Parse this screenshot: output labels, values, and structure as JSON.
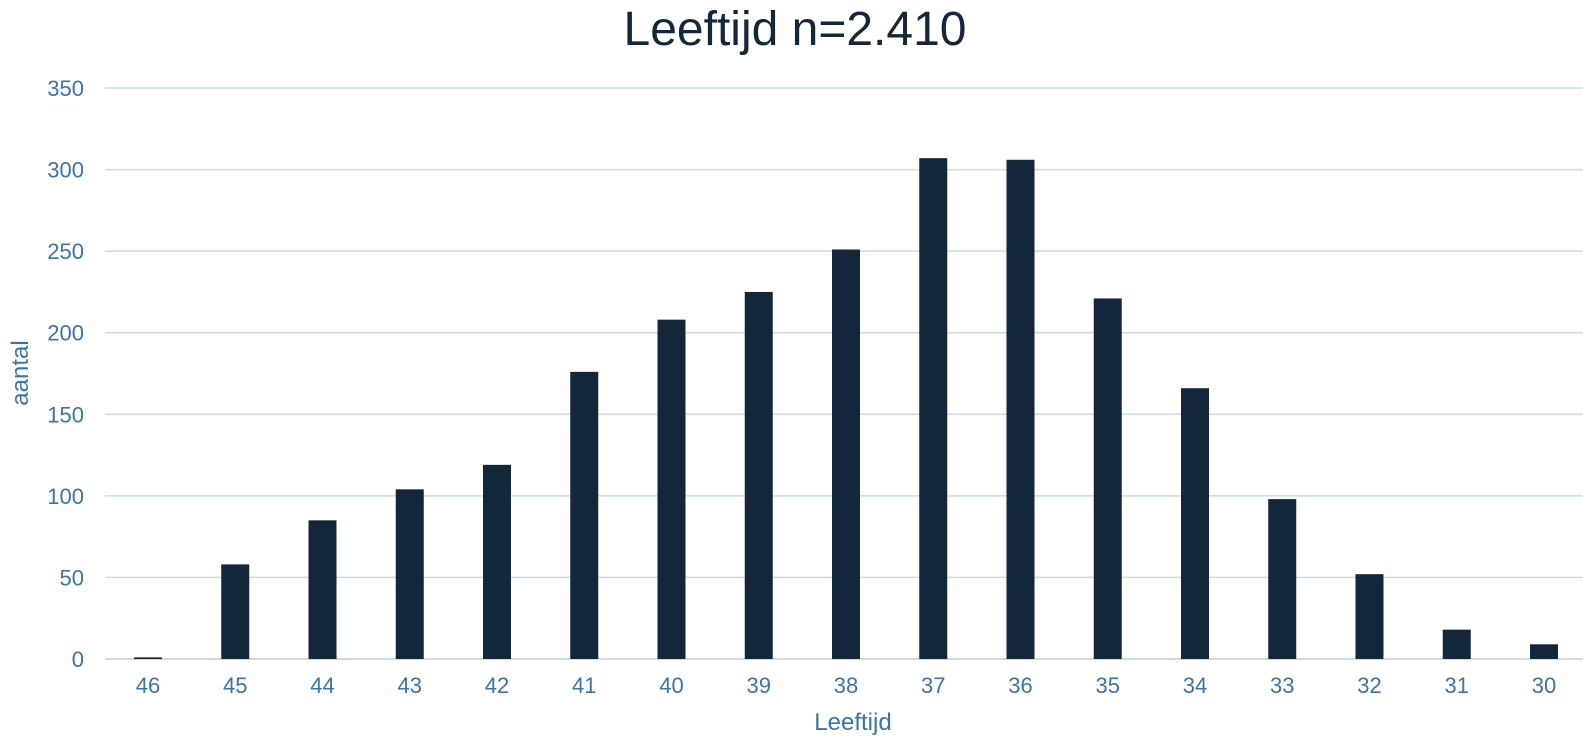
{
  "chart_data": {
    "type": "bar",
    "title": "Leeftijd n=2.410",
    "xlabel": "Leeftijd",
    "ylabel": "aantal",
    "categories": [
      "46",
      "45",
      "44",
      "43",
      "42",
      "41",
      "40",
      "39",
      "38",
      "37",
      "36",
      "35",
      "34",
      "33",
      "32",
      "31",
      "30"
    ],
    "values": [
      1,
      58,
      85,
      104,
      119,
      176,
      208,
      225,
      251,
      307,
      306,
      221,
      166,
      98,
      52,
      18,
      9
    ],
    "ylim": [
      0,
      350
    ],
    "yticks": [
      0,
      50,
      100,
      150,
      200,
      250,
      300,
      350
    ],
    "grid": true,
    "legend": "none",
    "colors": {
      "bar": "#14263a",
      "axis_text": "#3b74a8",
      "grid": "#c9dbe8",
      "title": "#14263a"
    }
  }
}
